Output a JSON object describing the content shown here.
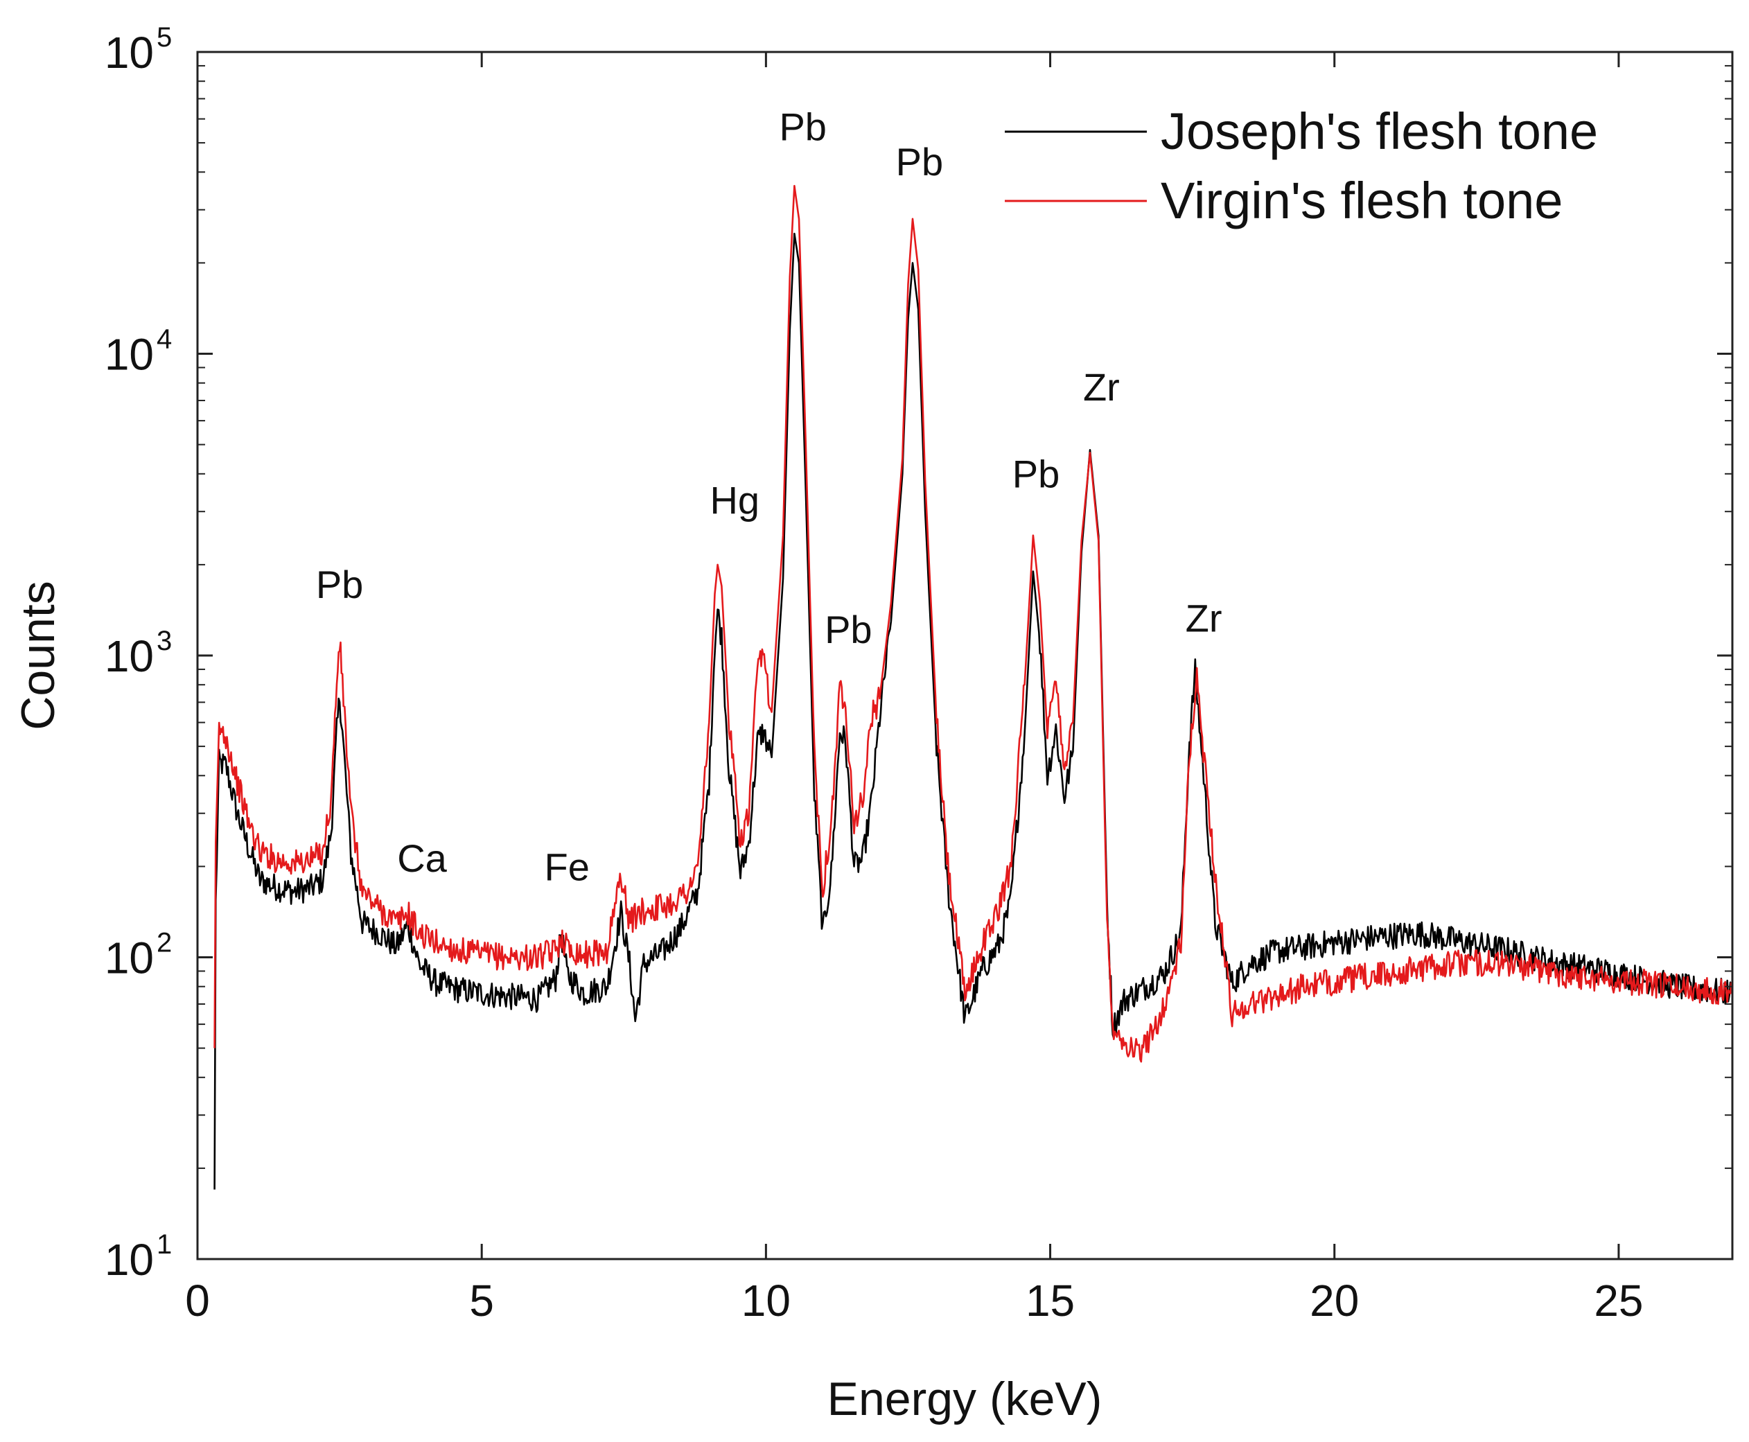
{
  "chart_data": {
    "type": "line",
    "title": "",
    "xlabel": "Energy (keV)",
    "ylabel": "Counts",
    "xlim": [
      0,
      27
    ],
    "ylim": [
      10,
      100000
    ],
    "yscale": "log",
    "legend_position": "top-right",
    "x_ticks": [
      {
        "value": 0,
        "label": "0"
      },
      {
        "value": 5,
        "label": "5"
      },
      {
        "value": 10,
        "label": "10"
      },
      {
        "value": 15,
        "label": "15"
      },
      {
        "value": 20,
        "label": "20"
      },
      {
        "value": 25,
        "label": "25"
      }
    ],
    "y_ticks": [
      {
        "value": 10,
        "base": "10",
        "exp": "1"
      },
      {
        "value": 100,
        "base": "10",
        "exp": "2"
      },
      {
        "value": 1000,
        "base": "10",
        "exp": "3"
      },
      {
        "value": 10000,
        "base": "10",
        "exp": "4"
      },
      {
        "value": 100000,
        "base": "10",
        "exp": "5"
      }
    ],
    "series": [
      {
        "name": "Joseph's flesh tone",
        "color": "#000000",
        "points": [
          [
            0.3,
            17
          ],
          [
            0.32,
            150
          ],
          [
            0.38,
            440
          ],
          [
            0.5,
            430
          ],
          [
            0.7,
            300
          ],
          [
            0.9,
            230
          ],
          [
            1.1,
            180
          ],
          [
            1.4,
            170
          ],
          [
            1.7,
            165
          ],
          [
            2.0,
            170
          ],
          [
            2.2,
            180
          ],
          [
            2.35,
            260
          ],
          [
            2.45,
            560
          ],
          [
            2.5,
            730
          ],
          [
            2.55,
            560
          ],
          [
            2.7,
            220
          ],
          [
            2.9,
            130
          ],
          [
            3.2,
            120
          ],
          [
            3.5,
            108
          ],
          [
            3.7,
            128
          ],
          [
            3.9,
            95
          ],
          [
            4.2,
            82
          ],
          [
            4.6,
            78
          ],
          [
            5.0,
            76
          ],
          [
            5.5,
            74
          ],
          [
            6.0,
            73
          ],
          [
            6.3,
            85
          ],
          [
            6.4,
            120
          ],
          [
            6.5,
            88
          ],
          [
            6.8,
            76
          ],
          [
            7.2,
            80
          ],
          [
            7.45,
            140
          ],
          [
            7.6,
            95
          ],
          [
            7.7,
            62
          ],
          [
            7.85,
            95
          ],
          [
            8.2,
            105
          ],
          [
            8.5,
            125
          ],
          [
            8.8,
            165
          ],
          [
            9.0,
            380
          ],
          [
            9.1,
            1100
          ],
          [
            9.15,
            1400
          ],
          [
            9.22,
            1150
          ],
          [
            9.35,
            420
          ],
          [
            9.55,
            190
          ],
          [
            9.7,
            240
          ],
          [
            9.85,
            520
          ],
          [
            9.95,
            560
          ],
          [
            10.1,
            460
          ],
          [
            10.3,
            1800
          ],
          [
            10.42,
            12000
          ],
          [
            10.5,
            25000
          ],
          [
            10.58,
            20000
          ],
          [
            10.7,
            3500
          ],
          [
            10.85,
            350
          ],
          [
            11.0,
            120
          ],
          [
            11.15,
            190
          ],
          [
            11.3,
            560
          ],
          [
            11.4,
            520
          ],
          [
            11.55,
            200
          ],
          [
            11.7,
            210
          ],
          [
            11.85,
            320
          ],
          [
            12.0,
            620
          ],
          [
            12.2,
            1300
          ],
          [
            12.4,
            4000
          ],
          [
            12.5,
            13000
          ],
          [
            12.58,
            20000
          ],
          [
            12.68,
            14000
          ],
          [
            12.8,
            3000
          ],
          [
            13.0,
            500
          ],
          [
            13.2,
            170
          ],
          [
            13.5,
            62
          ],
          [
            13.8,
            90
          ],
          [
            14.1,
            110
          ],
          [
            14.3,
            150
          ],
          [
            14.55,
            550
          ],
          [
            14.7,
            1900
          ],
          [
            14.82,
            1100
          ],
          [
            14.95,
            400
          ],
          [
            15.1,
            570
          ],
          [
            15.25,
            340
          ],
          [
            15.4,
            480
          ],
          [
            15.55,
            2200
          ],
          [
            15.7,
            4800
          ],
          [
            15.85,
            2500
          ],
          [
            16.0,
            150
          ],
          [
            16.1,
            58
          ],
          [
            16.3,
            72
          ],
          [
            16.6,
            78
          ],
          [
            17.0,
            88
          ],
          [
            17.3,
            120
          ],
          [
            17.45,
            520
          ],
          [
            17.55,
            880
          ],
          [
            17.7,
            400
          ],
          [
            17.9,
            130
          ],
          [
            18.2,
            82
          ],
          [
            18.5,
            95
          ],
          [
            19.0,
            105
          ],
          [
            19.5,
            108
          ],
          [
            20.0,
            112
          ],
          [
            20.5,
            115
          ],
          [
            21.0,
            118
          ],
          [
            21.5,
            120
          ],
          [
            22.0,
            115
          ],
          [
            22.5,
            110
          ],
          [
            23.0,
            106
          ],
          [
            23.5,
            100
          ],
          [
            24.0,
            95
          ],
          [
            24.5,
            92
          ],
          [
            25.0,
            88
          ],
          [
            25.5,
            84
          ],
          [
            26.0,
            80
          ],
          [
            26.5,
            78
          ],
          [
            27.0,
            76
          ]
        ]
      },
      {
        "name": "Virgin's flesh tone",
        "color": "#e41a1c",
        "points": [
          [
            0.3,
            50
          ],
          [
            0.32,
            220
          ],
          [
            0.38,
            570
          ],
          [
            0.5,
            540
          ],
          [
            0.7,
            380
          ],
          [
            0.9,
            280
          ],
          [
            1.1,
            225
          ],
          [
            1.4,
            210
          ],
          [
            1.7,
            205
          ],
          [
            2.0,
            210
          ],
          [
            2.2,
            225
          ],
          [
            2.35,
            330
          ],
          [
            2.45,
            820
          ],
          [
            2.5,
            1100
          ],
          [
            2.55,
            820
          ],
          [
            2.7,
            300
          ],
          [
            2.9,
            165
          ],
          [
            3.2,
            145
          ],
          [
            3.5,
            130
          ],
          [
            3.7,
            140
          ],
          [
            3.9,
            120
          ],
          [
            4.2,
            112
          ],
          [
            4.6,
            105
          ],
          [
            5.0,
            102
          ],
          [
            5.5,
            100
          ],
          [
            6.0,
            100
          ],
          [
            6.3,
            105
          ],
          [
            6.4,
            118
          ],
          [
            6.5,
            108
          ],
          [
            6.8,
            102
          ],
          [
            7.2,
            105
          ],
          [
            7.45,
            190
          ],
          [
            7.6,
            130
          ],
          [
            7.75,
            140
          ],
          [
            8.0,
            145
          ],
          [
            8.3,
            150
          ],
          [
            8.6,
            165
          ],
          [
            8.8,
            195
          ],
          [
            9.0,
            600
          ],
          [
            9.1,
            1600
          ],
          [
            9.15,
            2000
          ],
          [
            9.22,
            1700
          ],
          [
            9.35,
            600
          ],
          [
            9.55,
            240
          ],
          [
            9.7,
            300
          ],
          [
            9.85,
            900
          ],
          [
            9.95,
            1000
          ],
          [
            10.1,
            650
          ],
          [
            10.3,
            2500
          ],
          [
            10.42,
            18000
          ],
          [
            10.5,
            36000
          ],
          [
            10.58,
            28000
          ],
          [
            10.7,
            5000
          ],
          [
            10.85,
            480
          ],
          [
            11.0,
            170
          ],
          [
            11.15,
            280
          ],
          [
            11.3,
            780
          ],
          [
            11.4,
            700
          ],
          [
            11.55,
            280
          ],
          [
            11.7,
            330
          ],
          [
            11.85,
            620
          ],
          [
            12.0,
            720
          ],
          [
            12.2,
            1500
          ],
          [
            12.4,
            4500
          ],
          [
            12.5,
            17000
          ],
          [
            12.58,
            28000
          ],
          [
            12.68,
            19000
          ],
          [
            12.8,
            3800
          ],
          [
            13.0,
            620
          ],
          [
            13.2,
            200
          ],
          [
            13.5,
            75
          ],
          [
            13.8,
            110
          ],
          [
            14.1,
            145
          ],
          [
            14.3,
            200
          ],
          [
            14.55,
            800
          ],
          [
            14.7,
            2500
          ],
          [
            14.82,
            1500
          ],
          [
            14.95,
            550
          ],
          [
            15.1,
            820
          ],
          [
            15.25,
            430
          ],
          [
            15.4,
            600
          ],
          [
            15.55,
            2400
          ],
          [
            15.7,
            4700
          ],
          [
            15.85,
            2400
          ],
          [
            16.0,
            130
          ],
          [
            16.1,
            60
          ],
          [
            16.3,
            52
          ],
          [
            16.6,
            48
          ],
          [
            17.0,
            68
          ],
          [
            17.3,
            110
          ],
          [
            17.45,
            480
          ],
          [
            17.58,
            820
          ],
          [
            17.75,
            380
          ],
          [
            17.95,
            150
          ],
          [
            18.2,
            65
          ],
          [
            18.5,
            70
          ],
          [
            19.0,
            75
          ],
          [
            19.5,
            80
          ],
          [
            20.0,
            83
          ],
          [
            20.5,
            86
          ],
          [
            21.0,
            88
          ],
          [
            21.5,
            92
          ],
          [
            22.0,
            95
          ],
          [
            22.5,
            96
          ],
          [
            23.0,
            95
          ],
          [
            23.5,
            92
          ],
          [
            24.0,
            88
          ],
          [
            24.5,
            86
          ],
          [
            25.0,
            84
          ],
          [
            25.5,
            82
          ],
          [
            26.0,
            80
          ],
          [
            26.5,
            78
          ],
          [
            27.0,
            77
          ]
        ]
      }
    ],
    "annotations": [
      {
        "text": "Pb",
        "x": 2.5,
        "y": 1550
      },
      {
        "text": "Ca",
        "x": 3.95,
        "y": 192
      },
      {
        "text": "Fe",
        "x": 6.5,
        "y": 180
      },
      {
        "text": "Hg",
        "x": 9.45,
        "y": 2950
      },
      {
        "text": "Pb",
        "x": 10.65,
        "y": 51000
      },
      {
        "text": "Pb",
        "x": 11.45,
        "y": 1100
      },
      {
        "text": "Pb",
        "x": 12.7,
        "y": 39000
      },
      {
        "text": "Pb",
        "x": 14.75,
        "y": 3600
      },
      {
        "text": "Zr",
        "x": 15.9,
        "y": 7000
      },
      {
        "text": "Zr",
        "x": 17.7,
        "y": 1200
      }
    ]
  }
}
